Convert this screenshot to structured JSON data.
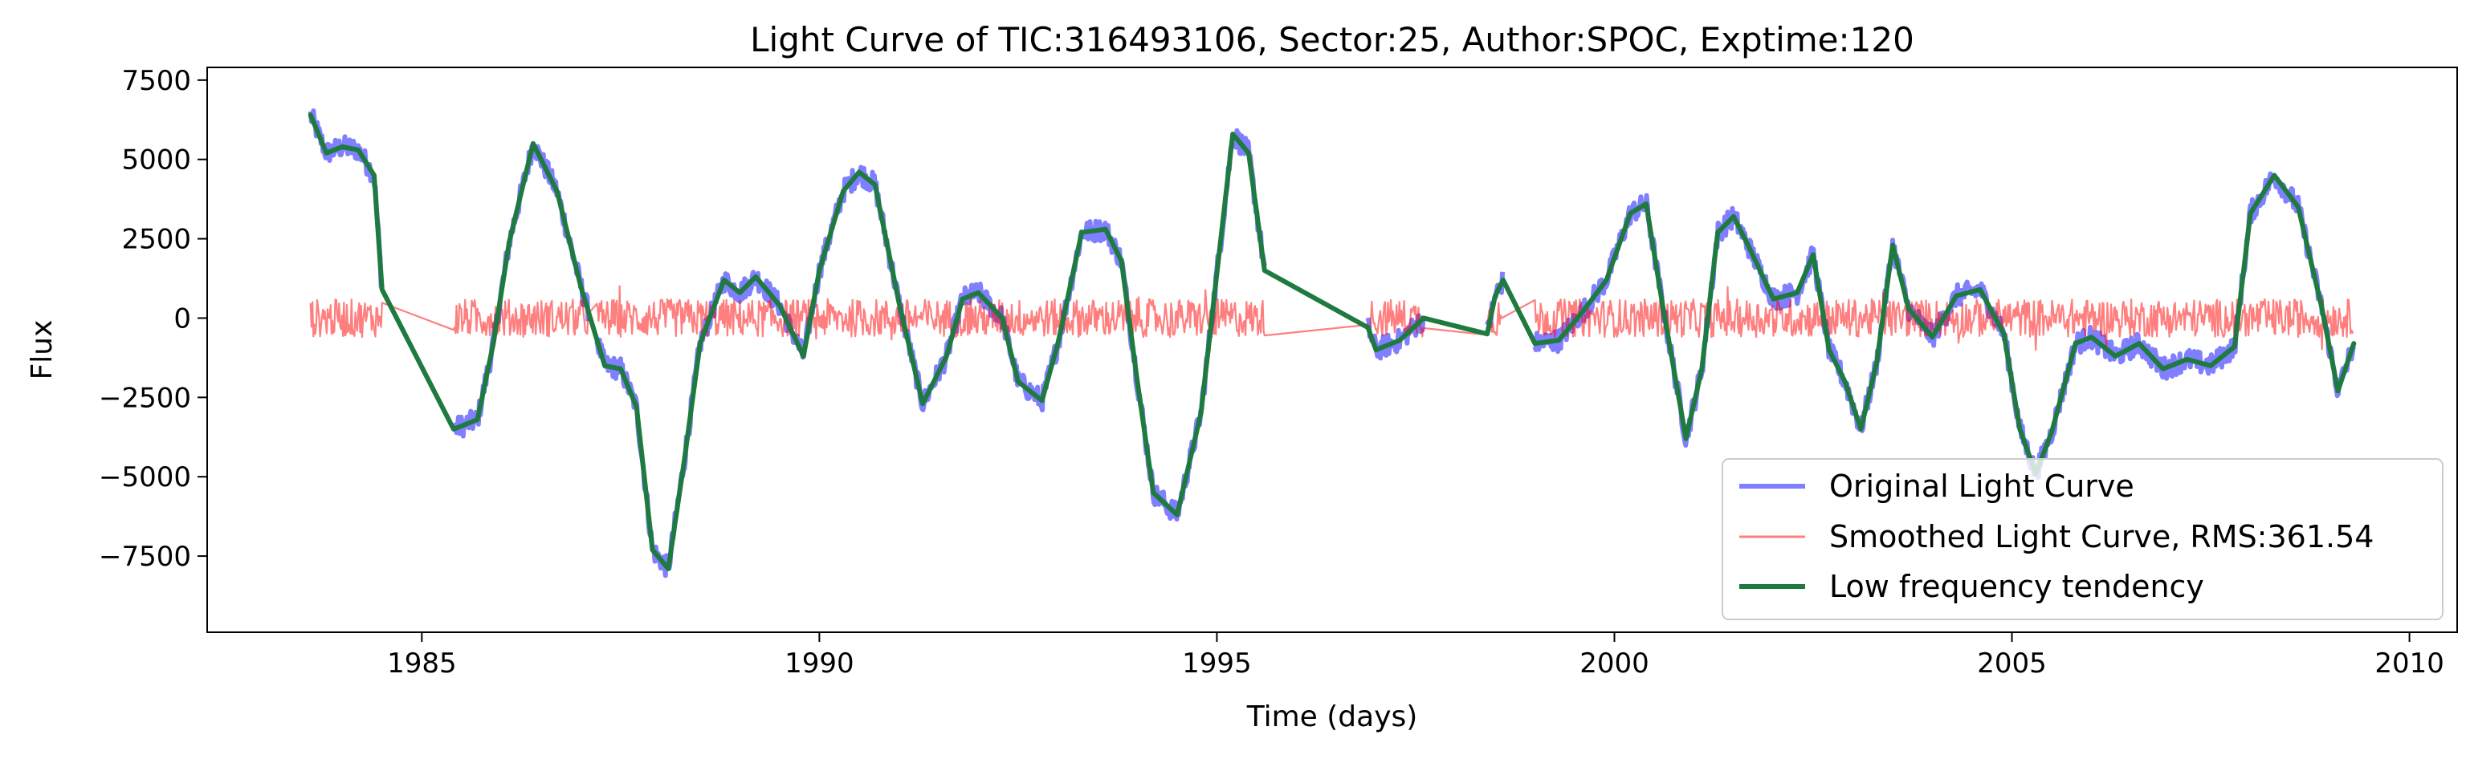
{
  "chart_data": {
    "type": "line",
    "title": "Light Curve of TIC:316493106, Sector:25, Author:SPOC, Exptime:120",
    "xlabel": "Time (days)",
    "ylabel": "Flux",
    "xlim": [
      1982.3,
      2010.6
    ],
    "ylim": [
      -9900,
      7900
    ],
    "xticks": [
      1985,
      1990,
      1995,
      2000,
      2005,
      2010
    ],
    "xtick_labels": [
      "1985",
      "1990",
      "1995",
      "2000",
      "2005",
      "2010"
    ],
    "yticks": [
      7500,
      5000,
      2500,
      0,
      -2500,
      -5000,
      -7500
    ],
    "ytick_labels": [
      "7500",
      "5000",
      "2500",
      "0",
      "−2500",
      "−5000",
      "−7500"
    ],
    "grid": false,
    "legend_position": "bottom-right",
    "segments": [
      [
        1983.6,
        1984.5
      ],
      [
        1985.4,
        1987.1
      ],
      [
        1987.2,
        1995.6
      ],
      [
        1996.9,
        1997.6
      ],
      [
        1998.4,
        1998.6
      ],
      [
        1999.0,
        2009.3
      ]
    ],
    "series": [
      {
        "name": "Original Light Curve",
        "color": "#0000ff",
        "alpha": 0.5,
        "noise_amplitude": 350,
        "note": "trend plus high-frequency scatter"
      },
      {
        "name": "Smoothed Light Curve, RMS:361.54",
        "color": "#ff0000",
        "alpha": 0.5,
        "noise_amplitude": 600,
        "rms": 361.54
      },
      {
        "name": "Low frequency tendency",
        "color": "#1e7a3e",
        "alpha": 1.0,
        "x": [
          1983.6,
          1983.8,
          1984.0,
          1984.2,
          1984.4,
          1984.5,
          1985.4,
          1985.7,
          1985.9,
          1986.1,
          1986.4,
          1986.7,
          1987.0,
          1987.3,
          1987.5,
          1987.7,
          1987.9,
          1988.1,
          1988.3,
          1988.5,
          1988.8,
          1989.0,
          1989.2,
          1989.5,
          1989.8,
          1990.0,
          1990.3,
          1990.5,
          1990.7,
          1991.0,
          1991.3,
          1991.6,
          1991.8,
          1992.0,
          1992.3,
          1992.5,
          1992.8,
          1993.0,
          1993.3,
          1993.6,
          1993.8,
          1994.0,
          1994.2,
          1994.5,
          1994.8,
          1995.0,
          1995.2,
          1995.4,
          1995.6,
          1996.9,
          1997.0,
          1997.3,
          1997.6,
          1998.4,
          1998.5,
          1998.6,
          1999.0,
          1999.3,
          1999.6,
          1999.9,
          2000.2,
          2000.4,
          2000.6,
          2000.9,
          2001.1,
          2001.3,
          2001.5,
          2001.7,
          2002.0,
          2002.3,
          2002.5,
          2002.7,
          2002.9,
          2003.1,
          2003.3,
          2003.5,
          2003.7,
          2004.0,
          2004.3,
          2004.6,
          2004.9,
          2005.1,
          2005.3,
          2005.5,
          2005.8,
          2006.0,
          2006.3,
          2006.6,
          2006.9,
          2007.2,
          2007.5,
          2007.8,
          2008.0,
          2008.3,
          2008.6,
          2008.9,
          2009.1,
          2009.3
        ],
        "y": [
          6400,
          5200,
          5400,
          5300,
          4500,
          900,
          -3500,
          -3200,
          -800,
          2400,
          5500,
          4000,
          1000,
          -1500,
          -1600,
          -2800,
          -7300,
          -7900,
          -4500,
          -800,
          1200,
          800,
          1300,
          400,
          -1200,
          1500,
          4000,
          4600,
          4200,
          500,
          -2700,
          -1200,
          600,
          800,
          0,
          -2000,
          -2600,
          -800,
          2700,
          2800,
          1800,
          -2000,
          -5500,
          -6200,
          -3000,
          1400,
          5800,
          5200,
          1500,
          -300,
          -1000,
          -700,
          0,
          -500,
          700,
          1200,
          -800,
          -700,
          200,
          1200,
          3300,
          3600,
          500,
          -3800,
          -1600,
          2700,
          3200,
          2200,
          600,
          800,
          2000,
          -1000,
          -2000,
          -3500,
          -1400,
          2300,
          300,
          -600,
          700,
          900,
          -500,
          -3500,
          -4900,
          -3600,
          -800,
          -600,
          -1200,
          -800,
          -1600,
          -1300,
          -1500,
          -900,
          3300,
          4500,
          3500,
          300,
          -2300,
          -800
        ]
      }
    ],
    "legend": [
      {
        "label": "Original Light Curve",
        "color": "#0000ff",
        "alpha": 0.5,
        "width": 6
      },
      {
        "label": "Smoothed Light Curve, RMS:361.54",
        "color": "#ff0000",
        "alpha": 0.5,
        "width": 3
      },
      {
        "label": "Low frequency tendency",
        "color": "#1e7a3e",
        "alpha": 1.0,
        "width": 6
      }
    ]
  }
}
